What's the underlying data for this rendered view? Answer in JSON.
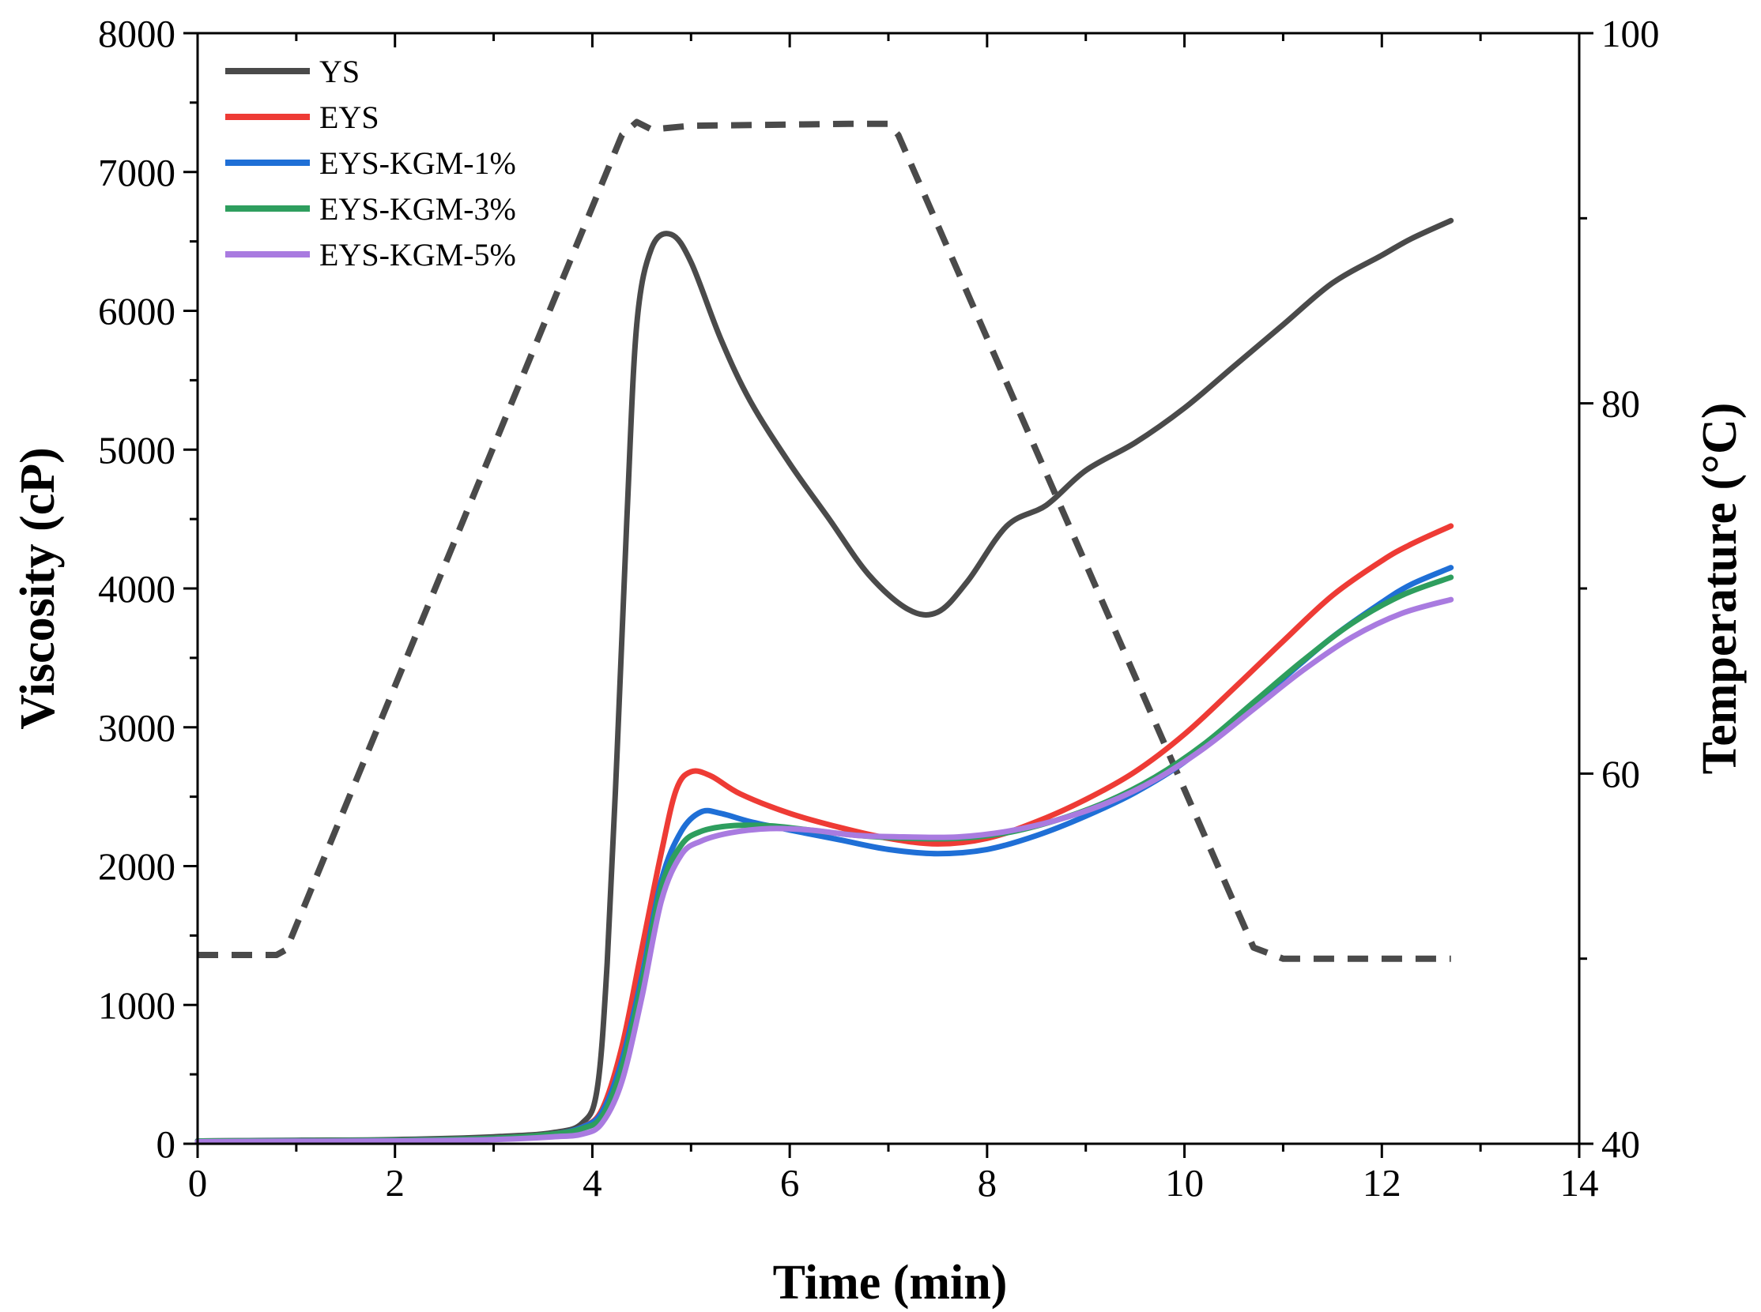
{
  "chart_data": {
    "type": "line",
    "xlabel": "Time (min)",
    "ylabel": "Viscosity (cP)",
    "y2label": "Temperature (°C)",
    "xlim": [
      0,
      14
    ],
    "ylim": [
      0,
      8000
    ],
    "y2lim": [
      40,
      100
    ],
    "xticks": [
      "0",
      "2",
      "4",
      "6",
      "8",
      "10",
      "12",
      "14"
    ],
    "yticks": [
      "0",
      "1000",
      "2000",
      "3000",
      "4000",
      "5000",
      "6000",
      "7000",
      "8000"
    ],
    "y2ticks": [
      "40",
      "60",
      "80",
      "100"
    ],
    "legend_position": "top-left",
    "series": [
      {
        "name": "YS",
        "color": "#4a4a4a",
        "points": [
          [
            0,
            20
          ],
          [
            1,
            25
          ],
          [
            2,
            30
          ],
          [
            3,
            50
          ],
          [
            3.6,
            80
          ],
          [
            3.9,
            150
          ],
          [
            4.05,
            400
          ],
          [
            4.15,
            1300
          ],
          [
            4.25,
            2800
          ],
          [
            4.35,
            4500
          ],
          [
            4.45,
            5900
          ],
          [
            4.6,
            6450
          ],
          [
            4.8,
            6550
          ],
          [
            5.0,
            6350
          ],
          [
            5.3,
            5800
          ],
          [
            5.6,
            5350
          ],
          [
            6,
            4900
          ],
          [
            6.4,
            4500
          ],
          [
            6.8,
            4100
          ],
          [
            7.2,
            3850
          ],
          [
            7.5,
            3830
          ],
          [
            7.8,
            4050
          ],
          [
            8.2,
            4450
          ],
          [
            8.6,
            4600
          ],
          [
            9,
            4850
          ],
          [
            9.5,
            5050
          ],
          [
            10,
            5300
          ],
          [
            10.5,
            5600
          ],
          [
            11,
            5900
          ],
          [
            11.5,
            6200
          ],
          [
            12,
            6400
          ],
          [
            12.3,
            6520
          ],
          [
            12.7,
            6650
          ]
        ]
      },
      {
        "name": "EYS",
        "color": "#ee3b35",
        "points": [
          [
            0,
            20
          ],
          [
            1,
            22
          ],
          [
            2,
            25
          ],
          [
            3,
            40
          ],
          [
            3.6,
            70
          ],
          [
            3.9,
            120
          ],
          [
            4.1,
            250
          ],
          [
            4.3,
            700
          ],
          [
            4.5,
            1400
          ],
          [
            4.7,
            2100
          ],
          [
            4.85,
            2550
          ],
          [
            5.0,
            2680
          ],
          [
            5.2,
            2650
          ],
          [
            5.5,
            2520
          ],
          [
            6,
            2380
          ],
          [
            6.5,
            2280
          ],
          [
            7,
            2200
          ],
          [
            7.5,
            2160
          ],
          [
            8,
            2200
          ],
          [
            8.5,
            2320
          ],
          [
            9,
            2480
          ],
          [
            9.5,
            2680
          ],
          [
            10,
            2950
          ],
          [
            10.5,
            3280
          ],
          [
            11,
            3620
          ],
          [
            11.5,
            3950
          ],
          [
            12,
            4200
          ],
          [
            12.3,
            4320
          ],
          [
            12.7,
            4450
          ]
        ]
      },
      {
        "name": "EYS-KGM-1%",
        "color": "#1f6fd6",
        "points": [
          [
            0,
            20
          ],
          [
            1,
            22
          ],
          [
            2,
            25
          ],
          [
            3,
            40
          ],
          [
            3.6,
            70
          ],
          [
            3.9,
            120
          ],
          [
            4.1,
            230
          ],
          [
            4.3,
            600
          ],
          [
            4.5,
            1200
          ],
          [
            4.7,
            1900
          ],
          [
            4.9,
            2250
          ],
          [
            5.1,
            2390
          ],
          [
            5.3,
            2380
          ],
          [
            5.6,
            2320
          ],
          [
            6,
            2260
          ],
          [
            6.5,
            2190
          ],
          [
            7,
            2120
          ],
          [
            7.5,
            2090
          ],
          [
            8,
            2120
          ],
          [
            8.5,
            2220
          ],
          [
            9,
            2360
          ],
          [
            9.5,
            2530
          ],
          [
            10,
            2750
          ],
          [
            10.5,
            3050
          ],
          [
            11,
            3350
          ],
          [
            11.5,
            3650
          ],
          [
            12,
            3900
          ],
          [
            12.3,
            4030
          ],
          [
            12.7,
            4150
          ]
        ]
      },
      {
        "name": "EYS-KGM-3%",
        "color": "#2e9e5e",
        "points": [
          [
            0,
            20
          ],
          [
            1,
            22
          ],
          [
            2,
            25
          ],
          [
            3,
            40
          ],
          [
            3.6,
            70
          ],
          [
            3.9,
            110
          ],
          [
            4.1,
            200
          ],
          [
            4.3,
            550
          ],
          [
            4.5,
            1150
          ],
          [
            4.7,
            1850
          ],
          [
            4.9,
            2150
          ],
          [
            5.1,
            2250
          ],
          [
            5.4,
            2290
          ],
          [
            5.8,
            2290
          ],
          [
            6.2,
            2260
          ],
          [
            6.7,
            2220
          ],
          [
            7.2,
            2200
          ],
          [
            7.7,
            2200
          ],
          [
            8.2,
            2240
          ],
          [
            8.7,
            2330
          ],
          [
            9.2,
            2460
          ],
          [
            9.7,
            2640
          ],
          [
            10.2,
            2880
          ],
          [
            10.7,
            3180
          ],
          [
            11.2,
            3480
          ],
          [
            11.7,
            3750
          ],
          [
            12.2,
            3950
          ],
          [
            12.7,
            4080
          ]
        ]
      },
      {
        "name": "EYS-KGM-5%",
        "color": "#a97be0",
        "points": [
          [
            0,
            15
          ],
          [
            1,
            18
          ],
          [
            2,
            20
          ],
          [
            3,
            30
          ],
          [
            3.6,
            50
          ],
          [
            3.9,
            70
          ],
          [
            4.1,
            150
          ],
          [
            4.3,
            450
          ],
          [
            4.5,
            1050
          ],
          [
            4.7,
            1750
          ],
          [
            4.9,
            2080
          ],
          [
            5.1,
            2180
          ],
          [
            5.4,
            2240
          ],
          [
            5.8,
            2270
          ],
          [
            6.2,
            2260
          ],
          [
            6.7,
            2220
          ],
          [
            7.2,
            2210
          ],
          [
            7.7,
            2210
          ],
          [
            8.2,
            2250
          ],
          [
            8.7,
            2330
          ],
          [
            9.2,
            2450
          ],
          [
            9.7,
            2620
          ],
          [
            10.2,
            2850
          ],
          [
            10.7,
            3130
          ],
          [
            11.2,
            3410
          ],
          [
            11.7,
            3650
          ],
          [
            12.2,
            3820
          ],
          [
            12.7,
            3920
          ]
        ]
      }
    ],
    "temperature_series": {
      "name": "Temperature",
      "color": "#4a4a4a",
      "style": "dashed",
      "axis": "right",
      "points": [
        [
          0,
          50.2
        ],
        [
          0.8,
          50.2
        ],
        [
          0.9,
          50.5
        ],
        [
          4.3,
          94.5
        ],
        [
          4.45,
          95.2
        ],
        [
          4.6,
          94.8
        ],
        [
          5,
          95
        ],
        [
          6.6,
          95.1
        ],
        [
          7.0,
          95.1
        ],
        [
          7.1,
          94.5
        ],
        [
          10.7,
          50.6
        ],
        [
          11.0,
          50.0
        ],
        [
          12.7,
          50.0
        ]
      ]
    }
  }
}
